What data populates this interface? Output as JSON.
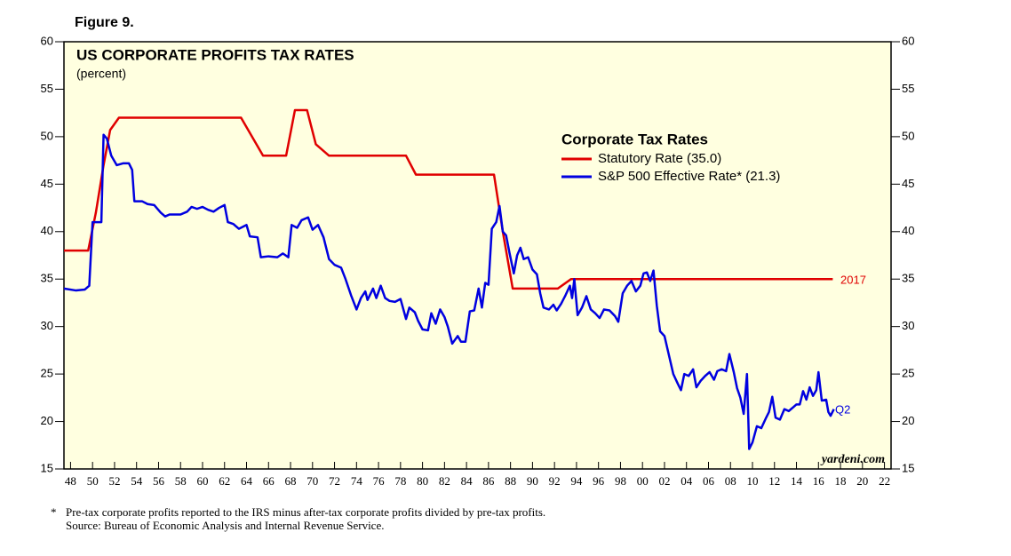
{
  "chart_data": {
    "type": "line",
    "figure_label": "Figure 9.",
    "title": "US CORPORATE PROFITS TAX RATES",
    "subtitle": "(percent)",
    "legend_title": "Corporate Tax Rates",
    "plot_background": "#ffffe0",
    "xlim": [
      1947.4,
      2022.6
    ],
    "ylim": [
      15,
      60
    ],
    "yticks": [
      15,
      20,
      25,
      30,
      35,
      40,
      45,
      50,
      55,
      60
    ],
    "xticks": [
      {
        "value": 1948,
        "label": "48"
      },
      {
        "value": 1950,
        "label": "50"
      },
      {
        "value": 1952,
        "label": "52"
      },
      {
        "value": 1954,
        "label": "54"
      },
      {
        "value": 1956,
        "label": "56"
      },
      {
        "value": 1958,
        "label": "58"
      },
      {
        "value": 1960,
        "label": "60"
      },
      {
        "value": 1962,
        "label": "62"
      },
      {
        "value": 1964,
        "label": "64"
      },
      {
        "value": 1966,
        "label": "66"
      },
      {
        "value": 1968,
        "label": "68"
      },
      {
        "value": 1970,
        "label": "70"
      },
      {
        "value": 1972,
        "label": "72"
      },
      {
        "value": 1974,
        "label": "74"
      },
      {
        "value": 1976,
        "label": "76"
      },
      {
        "value": 1978,
        "label": "78"
      },
      {
        "value": 1980,
        "label": "80"
      },
      {
        "value": 1982,
        "label": "82"
      },
      {
        "value": 1984,
        "label": "84"
      },
      {
        "value": 1986,
        "label": "86"
      },
      {
        "value": 1988,
        "label": "88"
      },
      {
        "value": 1990,
        "label": "90"
      },
      {
        "value": 1992,
        "label": "92"
      },
      {
        "value": 1994,
        "label": "94"
      },
      {
        "value": 1996,
        "label": "96"
      },
      {
        "value": 1998,
        "label": "98"
      },
      {
        "value": 2000,
        "label": "00"
      },
      {
        "value": 2002,
        "label": "02"
      },
      {
        "value": 2004,
        "label": "04"
      },
      {
        "value": 2006,
        "label": "06"
      },
      {
        "value": 2008,
        "label": "08"
      },
      {
        "value": 2010,
        "label": "10"
      },
      {
        "value": 2012,
        "label": "12"
      },
      {
        "value": 2014,
        "label": "14"
      },
      {
        "value": 2016,
        "label": "16"
      },
      {
        "value": 2018,
        "label": "18"
      },
      {
        "value": 2020,
        "label": "20"
      },
      {
        "value": 2022,
        "label": "22"
      }
    ],
    "series": [
      {
        "name": "Statutory Rate (35.0)",
        "color": "#e00000",
        "x": [
          1947.4,
          1949.6,
          1950.3,
          1951.0,
          1951.6,
          1952.4,
          1963.5,
          1965.5,
          1967.6,
          1968.4,
          1969.5,
          1970.3,
          1971.5,
          1978.5,
          1979.4,
          1986.5,
          1987.3,
          1988.2,
          1992.3,
          1993.5,
          2017.3
        ],
        "values": [
          38,
          38,
          42,
          47,
          50.7,
          52,
          52,
          48,
          48,
          52.8,
          52.8,
          49.2,
          48,
          48,
          46,
          46,
          40,
          34,
          34,
          35,
          35
        ]
      },
      {
        "name": "S&P 500 Effective Rate*  (21.3)",
        "color": "#0000e0",
        "x": [
          1947.4,
          1948.5,
          1949.3,
          1949.7,
          1950.0,
          1950.5,
          1950.8,
          1951.0,
          1951.3,
          1951.7,
          1952.2,
          1952.8,
          1953.3,
          1953.6,
          1953.8,
          1954.5,
          1955.0,
          1955.6,
          1956.2,
          1956.6,
          1957.0,
          1958.0,
          1958.6,
          1959.0,
          1959.5,
          1960.0,
          1960.5,
          1961.0,
          1961.5,
          1962.0,
          1962.3,
          1962.8,
          1963.3,
          1964.0,
          1964.3,
          1965.0,
          1965.3,
          1966.0,
          1966.8,
          1967.3,
          1967.8,
          1968.1,
          1968.6,
          1969.0,
          1969.6,
          1970.0,
          1970.5,
          1971.0,
          1971.5,
          1972.0,
          1972.6,
          1973.0,
          1973.5,
          1974.0,
          1974.4,
          1974.8,
          1975.0,
          1975.5,
          1975.8,
          1976.2,
          1976.6,
          1977.0,
          1977.5,
          1978.0,
          1978.5,
          1978.8,
          1979.3,
          1979.6,
          1980.0,
          1980.5,
          1980.8,
          1981.2,
          1981.6,
          1982.0,
          1982.3,
          1982.7,
          1983.2,
          1983.5,
          1983.9,
          1984.3,
          1984.7,
          1985.1,
          1985.4,
          1985.7,
          1986.0,
          1986.3,
          1986.7,
          1987.0,
          1987.3,
          1987.6,
          1987.9,
          1988.3,
          1988.6,
          1988.9,
          1989.2,
          1989.6,
          1990.0,
          1990.4,
          1990.7,
          1991.0,
          1991.5,
          1991.9,
          1992.2,
          1992.6,
          1993.0,
          1993.4,
          1993.6,
          1993.8,
          1994.1,
          1994.5,
          1994.9,
          1995.3,
          1995.7,
          1996.1,
          1996.5,
          1997.0,
          1997.5,
          1997.8,
          1998.2,
          1998.6,
          1999.0,
          1999.4,
          1999.8,
          2000.1,
          2000.4,
          2000.7,
          2001.0,
          2001.3,
          2001.6,
          2002.0,
          2002.4,
          2002.8,
          2003.2,
          2003.5,
          2003.8,
          2004.2,
          2004.6,
          2004.9,
          2005.3,
          2005.7,
          2006.1,
          2006.5,
          2006.8,
          2007.2,
          2007.6,
          2007.9,
          2008.3,
          2008.6,
          2008.9,
          2009.2,
          2009.5,
          2009.7,
          2010.0,
          2010.4,
          2010.8,
          2011.2,
          2011.5,
          2011.8,
          2012.1,
          2012.5,
          2012.9,
          2013.3,
          2013.7,
          2014.0,
          2014.3,
          2014.6,
          2014.9,
          2015.2,
          2015.5,
          2015.8,
          2016.0,
          2016.3,
          2016.7,
          2016.9,
          2017.1,
          2017.4
        ],
        "values": [
          34.0,
          33.8,
          33.9,
          34.3,
          41.0,
          41.0,
          41.0,
          50.2,
          49.8,
          48.0,
          47.0,
          47.2,
          47.2,
          46.5,
          43.2,
          43.2,
          42.9,
          42.8,
          42.0,
          41.6,
          41.8,
          41.8,
          42.1,
          42.6,
          42.4,
          42.6,
          42.3,
          42.1,
          42.5,
          42.8,
          41.0,
          40.8,
          40.3,
          40.7,
          39.5,
          39.4,
          37.3,
          37.4,
          37.3,
          37.7,
          37.3,
          40.7,
          40.4,
          41.2,
          41.5,
          40.2,
          40.7,
          39.4,
          37.1,
          36.5,
          36.2,
          35.0,
          33.3,
          31.8,
          33.0,
          33.7,
          32.8,
          34.0,
          33.0,
          34.3,
          33.0,
          32.7,
          32.6,
          32.9,
          30.8,
          32.0,
          31.5,
          30.6,
          29.7,
          29.6,
          31.4,
          30.3,
          31.8,
          31.0,
          30.0,
          28.2,
          29.0,
          28.4,
          28.4,
          31.6,
          31.7,
          34.0,
          32.0,
          34.6,
          34.4,
          40.3,
          41.0,
          42.7,
          40.0,
          39.6,
          37.8,
          35.6,
          37.5,
          38.3,
          37.1,
          37.3,
          36.0,
          35.5,
          33.5,
          32.0,
          31.8,
          32.3,
          31.7,
          32.4,
          33.3,
          34.3,
          33.0,
          35.0,
          31.2,
          32.0,
          33.2,
          31.8,
          31.4,
          30.9,
          31.8,
          31.7,
          31.1,
          30.5,
          33.5,
          34.3,
          34.8,
          33.7,
          34.3,
          35.6,
          35.7,
          34.8,
          35.9,
          32.2,
          29.5,
          29.0,
          27.0,
          25.0,
          24.0,
          23.3,
          25.0,
          24.8,
          25.5,
          23.6,
          24.3,
          24.8,
          25.2,
          24.4,
          25.3,
          25.5,
          25.3,
          27.1,
          25.2,
          23.5,
          22.5,
          20.8,
          25.0,
          17.1,
          17.8,
          19.5,
          19.3,
          20.3,
          21.0,
          22.6,
          20.4,
          20.2,
          21.3,
          21.1,
          21.5,
          21.8,
          21.8,
          23.2,
          22.3,
          23.6,
          22.7,
          23.3,
          25.2,
          22.2,
          22.3,
          21.0,
          20.6,
          21.3
        ]
      }
    ],
    "annotations": [
      "2017",
      "Q2",
      "yardeni.com"
    ],
    "footnote_marker": "*",
    "footnote": "Pre-tax corporate profits reported to the IRS minus after-tax corporate profits divided by pre-tax profits.",
    "source": "Source: Bureau of Economic Analysis and Internal Revenue Service."
  }
}
